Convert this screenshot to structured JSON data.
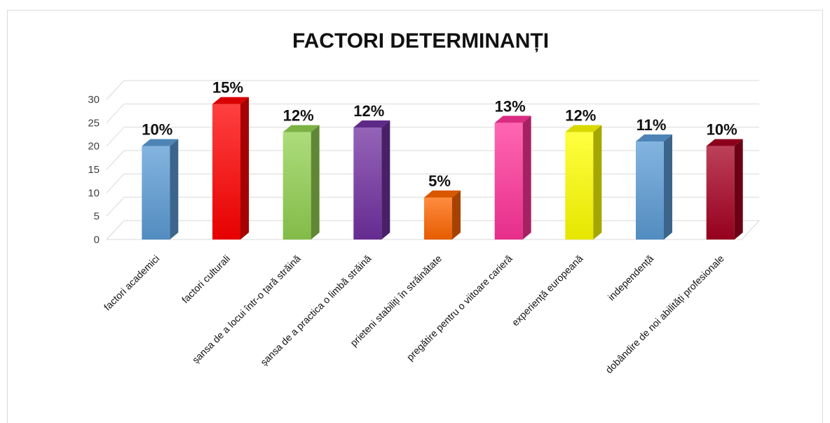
{
  "chart_data": {
    "type": "bar",
    "title": "FACTORI DETERMINANȚI",
    "categories": [
      "factori academici",
      "factori culturali",
      "șansa de a locui într-o țară străină",
      "șansa de a practica o limbă străină",
      "prieteni stabiliți în străinătate",
      "pregătire pentru o viitoare carieră",
      "experiență europeană",
      "independență",
      "dobândire de noi abilități profesionale"
    ],
    "values": [
      20,
      29,
      23,
      24,
      9,
      25,
      23,
      21,
      20
    ],
    "data_labels": [
      "10%",
      "15%",
      "12%",
      "12%",
      "5%",
      "13%",
      "12%",
      "11%",
      "10%"
    ],
    "colors": [
      "#5b9bd5",
      "#ff0000",
      "#92d050",
      "#7030a0",
      "#ff6600",
      "#ff3399",
      "#ffff00",
      "#5b9bd5",
      "#a50021"
    ],
    "ylim": [
      0,
      30
    ],
    "yticks": [
      "0",
      "5",
      "10",
      "15",
      "20",
      "25",
      "30"
    ],
    "xlabel": "",
    "ylabel": "",
    "grid": true,
    "legend": "none"
  }
}
